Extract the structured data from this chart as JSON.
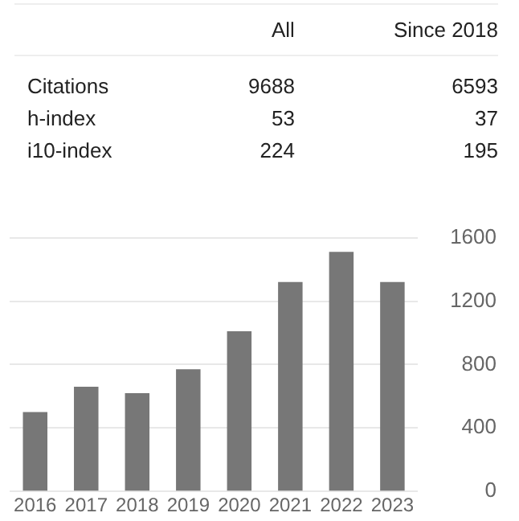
{
  "chart_data": {
    "type": "bar",
    "categories": [
      "2016",
      "2017",
      "2018",
      "2019",
      "2020",
      "2021",
      "2022",
      "2023"
    ],
    "values": [
      500,
      660,
      620,
      770,
      1010,
      1320,
      1510,
      1320
    ],
    "color": "#777777",
    "ylim": [
      0,
      1600
    ],
    "yticks": [
      0,
      400,
      800,
      1200,
      1600
    ],
    "grid": "y",
    "annotations": [
      "All",
      "Since 2018",
      "Citations",
      "9688",
      "6593",
      "h-index",
      "53",
      "37",
      "i10-index",
      "224",
      "195"
    ]
  }
}
